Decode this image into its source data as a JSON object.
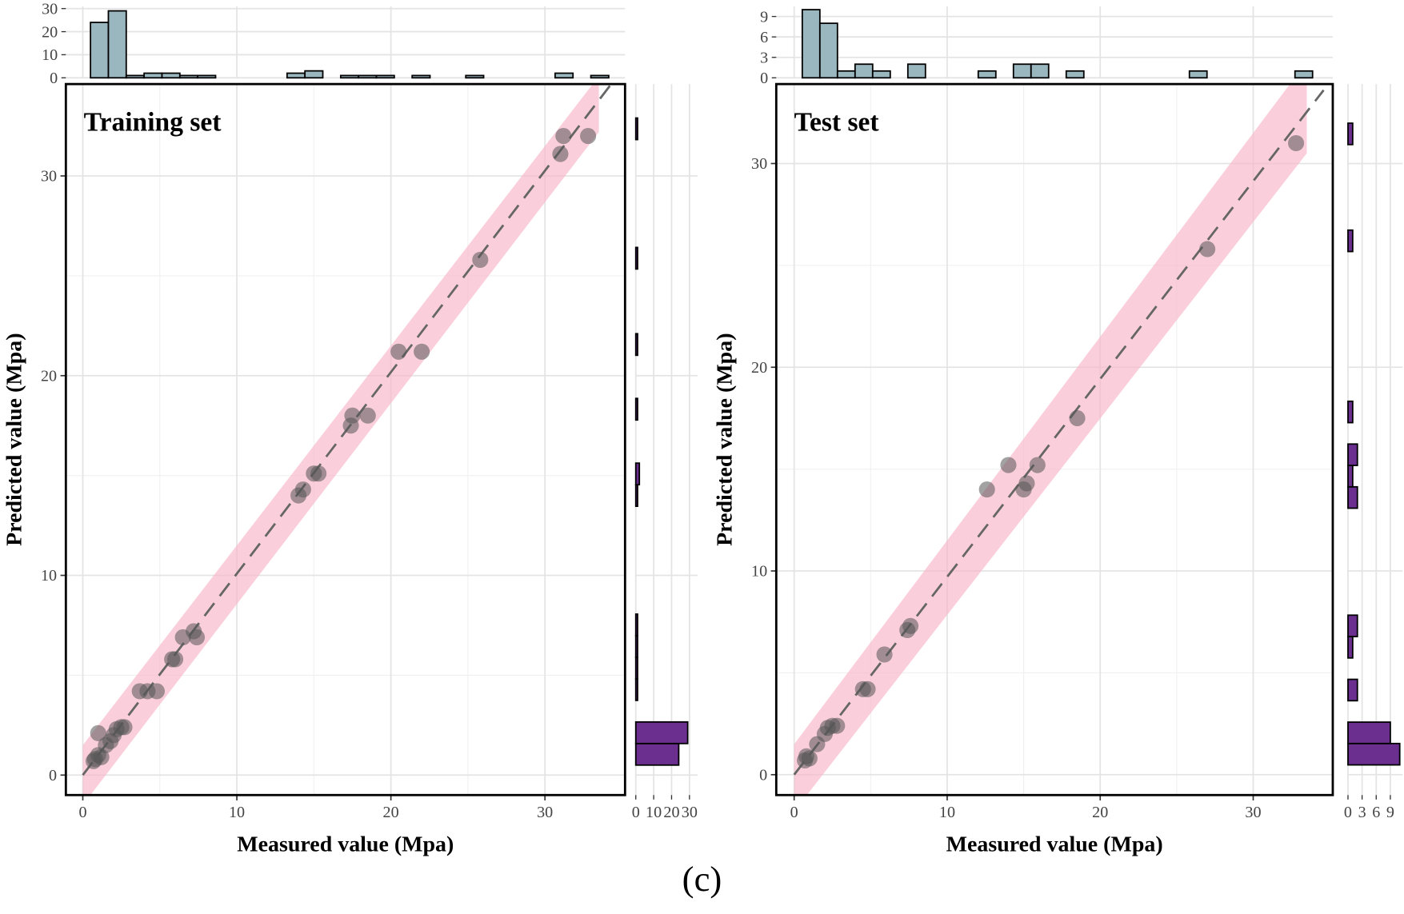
{
  "caption": "(c)",
  "chart_data": [
    {
      "type": "scatter",
      "title": "Training set",
      "x_label": "Measured value (Mpa)",
      "y_label": "Predicted value (Mpa)",
      "xlim": [
        -1.1,
        35.2
      ],
      "ylim": [
        -1.0,
        34.6
      ],
      "xticks": [
        0,
        10,
        20,
        30
      ],
      "yticks": [
        0,
        10,
        20,
        30
      ],
      "grid": true,
      "point_color": "#555555",
      "x": [
        1.0,
        0.8,
        1.0,
        0.7,
        1.2,
        1.5,
        1.8,
        2.0,
        2.2,
        2.5,
        2.7,
        3.7,
        4.2,
        4.8,
        5.8,
        6.0,
        6.5,
        7.2,
        7.4,
        14.0,
        14.3,
        15.0,
        15.3,
        17.4,
        17.5,
        18.5,
        20.5,
        22.0,
        25.8,
        31.0,
        31.2,
        32.8
      ],
      "values": [
        2.1,
        0.8,
        1.0,
        0.7,
        0.9,
        1.5,
        1.7,
        2.0,
        2.3,
        2.4,
        2.4,
        4.2,
        4.2,
        4.2,
        5.8,
        5.8,
        6.9,
        7.2,
        6.9,
        14.0,
        14.3,
        15.1,
        15.1,
        17.5,
        18.0,
        18.0,
        21.2,
        21.2,
        25.8,
        31.1,
        32.0,
        32.0
      ],
      "band": {
        "color": "#f7b6c8",
        "x": [
          0,
          33.5
        ],
        "lower": [
          -1.5,
          32.2
        ],
        "upper": [
          1.5,
          35.0
        ]
      },
      "fit_line": {
        "color": "#666666",
        "x": [
          0,
          34.4
        ],
        "y": [
          0,
          34.7
        ]
      },
      "top_histogram": {
        "color": "#9ab7bf",
        "bins": [
          0.5,
          1.66,
          2.82,
          3.98,
          5.14,
          6.3,
          7.46,
          8.62,
          9.78,
          10.94,
          12.1,
          13.26,
          14.42,
          15.58,
          16.74,
          17.9,
          19.06,
          20.22,
          21.38,
          22.54,
          23.7,
          24.86,
          26.02,
          27.18,
          28.34,
          29.5,
          30.66,
          31.82,
          32.98,
          34.14
        ],
        "counts": [
          24,
          29,
          1,
          2,
          2,
          1,
          1,
          0,
          0,
          0,
          0,
          2,
          3,
          0,
          1,
          1,
          1,
          0,
          1,
          0,
          0,
          1,
          0,
          0,
          0,
          0,
          2,
          0,
          1
        ],
        "ylim": [
          0,
          31
        ],
        "yticks": [
          0,
          10,
          20,
          30
        ]
      },
      "right_histogram": {
        "color": "#6a2f8f",
        "bins": [
          0.5,
          1.58,
          2.66,
          3.74,
          4.82,
          5.9,
          6.98,
          8.06,
          9.14,
          10.22,
          11.3,
          12.38,
          13.46,
          14.54,
          15.62,
          16.7,
          17.78,
          18.86,
          19.94,
          21.02,
          22.1,
          23.18,
          24.26,
          25.34,
          26.42,
          27.5,
          28.58,
          29.66,
          30.74,
          31.82,
          32.9
        ],
        "counts": [
          24,
          29,
          0,
          1,
          1,
          1,
          1,
          0,
          0,
          0,
          0,
          0,
          1,
          2,
          0,
          0,
          1,
          0,
          0,
          1,
          0,
          0,
          0,
          1,
          0,
          0,
          0,
          0,
          0,
          1
        ],
        "xlim": [
          0,
          34.5
        ],
        "xticks": [
          0,
          10,
          20,
          30
        ]
      }
    },
    {
      "type": "scatter",
      "title": "Test set",
      "x_label": "Measured value (Mpa)",
      "y_label": "Predicted value (Mpa)",
      "xlim": [
        -1.17,
        35.2
      ],
      "ylim": [
        -1.0,
        33.9
      ],
      "xticks": [
        0,
        10,
        20,
        30
      ],
      "yticks": [
        0,
        10,
        20,
        30
      ],
      "grid": true,
      "point_color": "#555555",
      "x": [
        0.7,
        0.8,
        1.0,
        1.5,
        2.0,
        2.2,
        2.5,
        2.8,
        4.5,
        4.8,
        5.9,
        7.4,
        7.6,
        12.6,
        14.0,
        15.0,
        15.2,
        15.9,
        18.5,
        27.0,
        32.8
      ],
      "values": [
        0.7,
        0.9,
        0.8,
        1.5,
        2.0,
        2.3,
        2.4,
        2.4,
        4.2,
        4.2,
        5.9,
        7.1,
        7.3,
        14.0,
        15.2,
        14.0,
        14.3,
        15.2,
        17.5,
        25.8,
        31.0
      ],
      "band": {
        "color": "#f7b6c8",
        "x": [
          0,
          33.5
        ],
        "lower": [
          -1.8,
          30.5
        ],
        "upper": [
          1.5,
          35.0
        ]
      },
      "fit_line": {
        "color": "#666666",
        "x": [
          0,
          34.6
        ],
        "y": [
          0,
          33.6
        ]
      },
      "top_histogram": {
        "color": "#9ab7bf",
        "bins": [
          0.53,
          1.68,
          2.83,
          3.98,
          5.13,
          6.28,
          7.43,
          8.58,
          9.73,
          10.88,
          12.03,
          13.18,
          14.33,
          15.48,
          16.63,
          17.78,
          18.93,
          20.08,
          21.23,
          22.38,
          23.53,
          24.68,
          25.83,
          26.98,
          28.13,
          29.28,
          30.43,
          31.58,
          32.73,
          33.88
        ],
        "counts": [
          10,
          8,
          1,
          2,
          1,
          0,
          2,
          0,
          0,
          0,
          1,
          0,
          2,
          2,
          0,
          1,
          0,
          0,
          0,
          0,
          0,
          0,
          1,
          0,
          0,
          0,
          0,
          0,
          1
        ],
        "ylim": [
          0,
          10.5
        ],
        "yticks": [
          0,
          3,
          6,
          9
        ]
      },
      "right_histogram": {
        "color": "#6a2f8f",
        "bins": [
          0.48,
          1.53,
          2.58,
          3.63,
          4.68,
          5.73,
          6.78,
          7.83,
          8.88,
          9.93,
          10.98,
          12.03,
          13.08,
          14.13,
          15.18,
          16.23,
          17.28,
          18.33,
          19.38,
          20.43,
          21.48,
          22.53,
          23.58,
          24.63,
          25.68,
          26.73,
          27.78,
          28.83,
          29.88,
          30.93,
          31.98
        ],
        "counts": [
          11,
          9,
          0,
          2,
          0,
          1,
          2,
          0,
          0,
          0,
          0,
          0,
          2,
          1,
          2,
          0,
          1,
          0,
          0,
          0,
          0,
          0,
          0,
          0,
          1,
          0,
          0,
          0,
          0,
          1
        ],
        "xlim": [
          0,
          11.6
        ],
        "xticks": [
          0,
          3,
          6,
          9
        ]
      }
    }
  ]
}
